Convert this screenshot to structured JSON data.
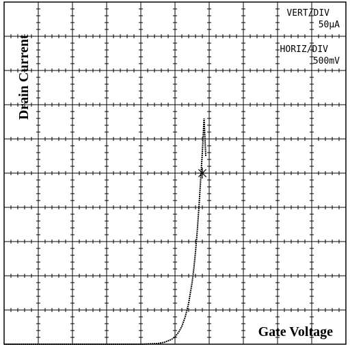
{
  "chart_data": {
    "type": "line",
    "ylabel": "Drain Current",
    "xlabel": "Gate Voltage",
    "scale": {
      "vert_title": "VERT/DIV",
      "vert_value": "50μA",
      "horiz_title": "HORIZ/DIV",
      "horiz_value": "500mV"
    },
    "divisions": {
      "x": 10,
      "y": 10
    },
    "xlim_div": [
      0,
      10
    ],
    "ylim_div": [
      0,
      10
    ],
    "grid": true,
    "series": [
      {
        "x_div": [
          0.0,
          0.5,
          1.0,
          1.5,
          2.0,
          2.5,
          3.0,
          3.5,
          4.0,
          4.5,
          4.7,
          4.9,
          5.0,
          5.1,
          5.2,
          5.3,
          5.4,
          5.5,
          5.55,
          5.6,
          5.65,
          5.7,
          5.75,
          5.8,
          5.85,
          5.9
        ],
        "y_div": [
          0.0,
          0.0,
          0.0,
          0.0,
          0.0,
          0.0,
          0.0,
          0.0,
          0.0,
          0.02,
          0.06,
          0.14,
          0.22,
          0.34,
          0.52,
          0.8,
          1.2,
          1.8,
          2.2,
          2.7,
          3.3,
          4.0,
          4.8,
          5.6,
          6.6,
          5.5
        ]
      }
    ],
    "marker": {
      "x_div": 5.8,
      "y_div": 5.0,
      "symbol": "asterisk"
    }
  }
}
